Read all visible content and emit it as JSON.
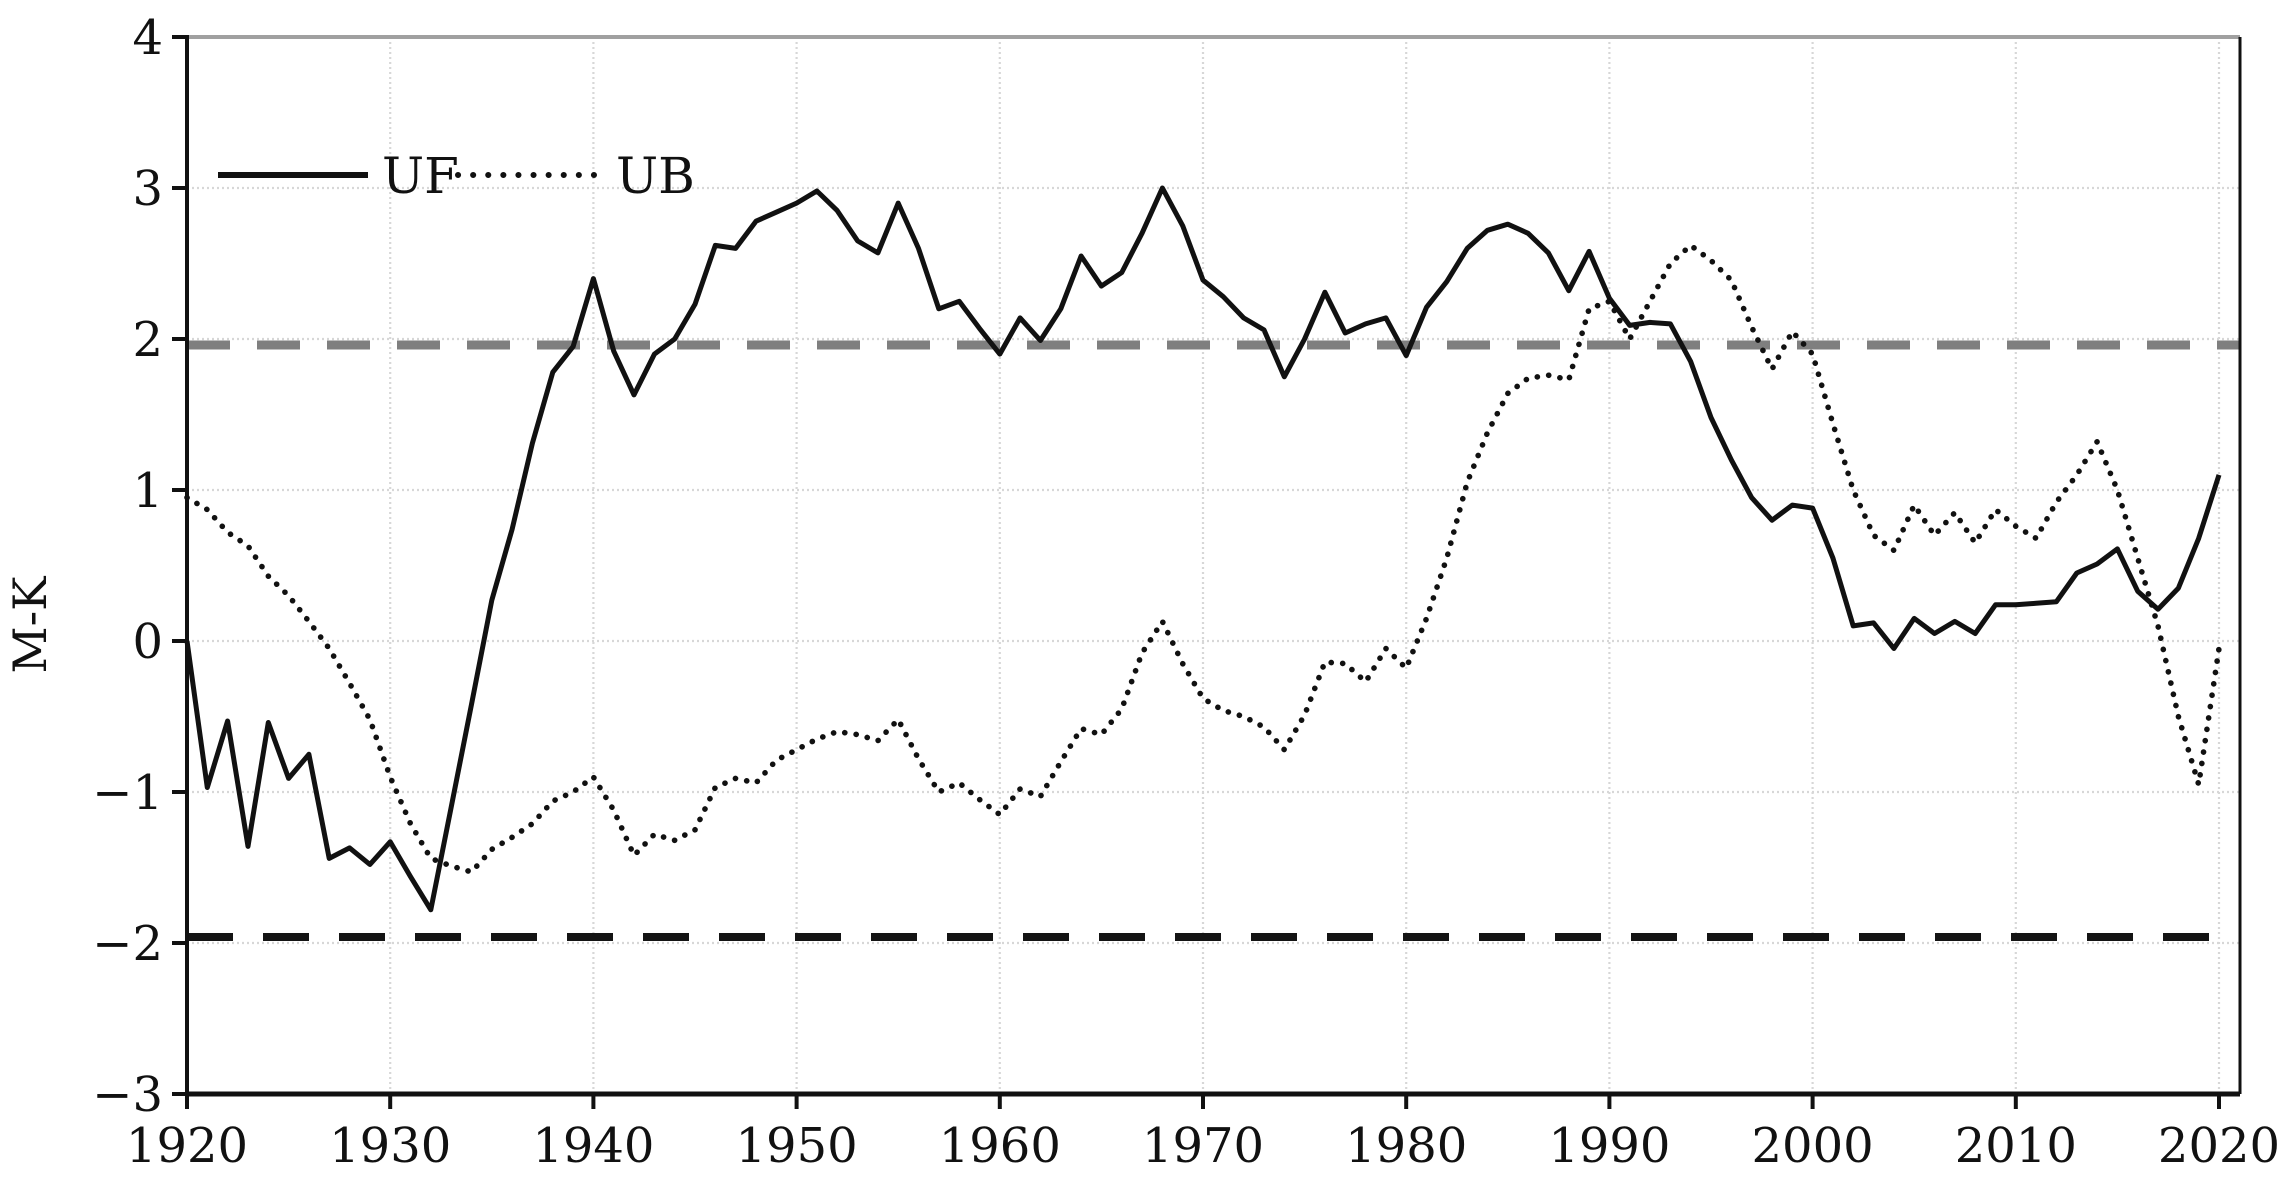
{
  "figure": {
    "title": "",
    "y_axis_label": "M-K"
  },
  "chart_data": {
    "type": "line",
    "title": "",
    "xlabel": "",
    "ylabel": "M-K",
    "xlim": [
      1920,
      2021
    ],
    "ylim": [
      -3,
      4
    ],
    "grid": true,
    "legend_position": "top-left-inside",
    "xticks": [
      1920,
      1930,
      1940,
      1950,
      1960,
      1970,
      1980,
      1990,
      2000,
      2010,
      2020
    ],
    "yticks": [
      4,
      3,
      2,
      1,
      0,
      -1,
      -2,
      -3
    ],
    "years": [
      1920,
      1921,
      1922,
      1923,
      1924,
      1925,
      1926,
      1927,
      1928,
      1929,
      1930,
      1931,
      1932,
      1933,
      1934,
      1935,
      1936,
      1937,
      1938,
      1939,
      1940,
      1941,
      1942,
      1943,
      1944,
      1945,
      1946,
      1947,
      1948,
      1949,
      1950,
      1951,
      1952,
      1953,
      1954,
      1955,
      1956,
      1957,
      1958,
      1959,
      1960,
      1961,
      1962,
      1963,
      1964,
      1965,
      1966,
      1967,
      1968,
      1969,
      1970,
      1971,
      1972,
      1973,
      1974,
      1975,
      1976,
      1977,
      1978,
      1979,
      1980,
      1981,
      1982,
      1983,
      1984,
      1985,
      1986,
      1987,
      1988,
      1989,
      1990,
      1991,
      1992,
      1993,
      1994,
      1995,
      1996,
      1997,
      1998,
      1999,
      2000,
      2001,
      2002,
      2003,
      2004,
      2005,
      2006,
      2007,
      2008,
      2009,
      2010,
      2011,
      2012,
      2013,
      2014,
      2015,
      2016,
      2017,
      2018,
      2019,
      2020
    ],
    "series": [
      {
        "name": "UF",
        "style": "solid",
        "color": "#111111",
        "values": [
          0.0,
          -0.97,
          -0.53,
          -1.36,
          -0.54,
          -0.91,
          -0.75,
          -1.44,
          -1.37,
          -1.48,
          -1.33,
          -1.56,
          -1.78,
          -1.1,
          -0.42,
          0.27,
          0.74,
          1.31,
          1.78,
          1.95,
          2.4,
          1.92,
          1.63,
          1.9,
          2.0,
          2.23,
          2.62,
          2.6,
          2.78,
          2.84,
          2.9,
          2.98,
          2.85,
          2.65,
          2.57,
          2.9,
          2.6,
          2.2,
          2.25,
          2.07,
          1.9,
          2.14,
          1.99,
          2.2,
          2.55,
          2.35,
          2.44,
          2.7,
          3.0,
          2.75,
          2.39,
          2.28,
          2.14,
          2.06,
          1.75,
          2.0,
          2.31,
          2.04,
          2.1,
          2.14,
          1.89,
          2.21,
          2.38,
          2.6,
          2.72,
          2.76,
          2.7,
          2.57,
          2.32,
          2.58,
          2.27,
          2.09,
          2.11,
          2.1,
          1.85,
          1.48,
          1.2,
          0.95,
          0.8,
          0.9,
          0.88,
          0.55,
          0.1,
          0.12,
          -0.05,
          0.15,
          0.05,
          0.13,
          0.05,
          0.24,
          0.24,
          0.25,
          0.26,
          0.45,
          0.51,
          0.61,
          0.33,
          0.21,
          0.35,
          0.68,
          1.1
        ]
      },
      {
        "name": "UB",
        "style": "dotted",
        "color": "#111111",
        "values": [
          0.95,
          0.87,
          0.72,
          0.63,
          0.43,
          0.3,
          0.13,
          -0.05,
          -0.28,
          -0.52,
          -0.9,
          -1.21,
          -1.44,
          -1.49,
          -1.53,
          -1.38,
          -1.3,
          -1.21,
          -1.06,
          -1.0,
          -0.9,
          -1.12,
          -1.42,
          -1.28,
          -1.32,
          -1.25,
          -0.97,
          -0.91,
          -0.94,
          -0.79,
          -0.72,
          -0.65,
          -0.6,
          -0.62,
          -0.66,
          -0.52,
          -0.78,
          -1.0,
          -0.94,
          -1.05,
          -1.15,
          -0.98,
          -1.03,
          -0.8,
          -0.58,
          -0.62,
          -0.45,
          -0.08,
          0.13,
          -0.15,
          -0.38,
          -0.46,
          -0.5,
          -0.57,
          -0.72,
          -0.49,
          -0.14,
          -0.15,
          -0.27,
          -0.05,
          -0.18,
          0.15,
          0.55,
          1.05,
          1.38,
          1.64,
          1.74,
          1.76,
          1.73,
          2.2,
          2.25,
          2.0,
          2.25,
          2.5,
          2.62,
          2.52,
          2.39,
          2.08,
          1.8,
          2.05,
          1.9,
          1.44,
          1.0,
          0.7,
          0.6,
          0.9,
          0.7,
          0.85,
          0.65,
          0.87,
          0.76,
          0.68,
          0.92,
          1.1,
          1.32,
          1.0,
          0.55,
          0.1,
          -0.5,
          -0.95,
          -0.05
        ]
      }
    ],
    "reference_lines": [
      {
        "name": "upper significance bound",
        "value": 1.96,
        "color": "#7f7f7f",
        "style": "dashed"
      },
      {
        "name": "lower significance bound",
        "value": -1.96,
        "color": "#141414",
        "style": "dashed"
      }
    ],
    "colors": {
      "line": "#111111",
      "grid": "#d7d7d7",
      "upper_ref": "#7f7f7f",
      "lower_ref": "#141414",
      "top_border": "#a0a0a0"
    }
  }
}
